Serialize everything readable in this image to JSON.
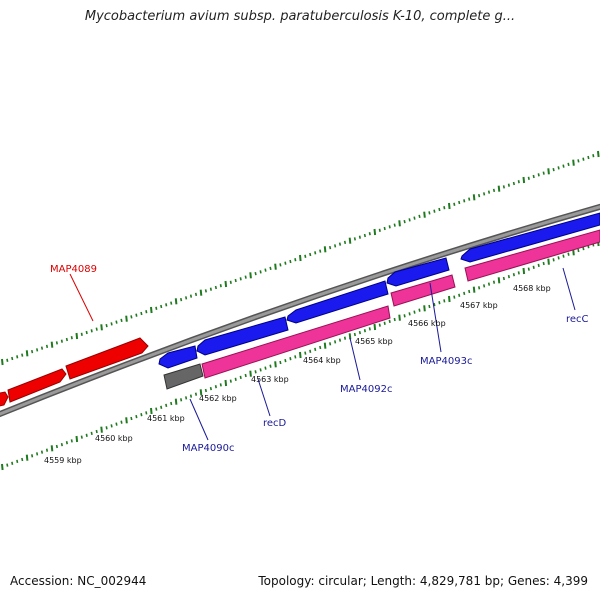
{
  "title": "Mycobacterium avium subsp. paratuberculosis K-10, complete g...",
  "footer": {
    "accession": "Accession: NC_002944",
    "summary": "Topology: circular; Length: 4,829,781 bp; Genes: 4,399"
  },
  "colors": {
    "backbone": "#808080",
    "ticks": "#1f7a1f",
    "forward_gene": "#ee0000",
    "cds_blue": "#1a1aee",
    "rna_pink": "#ee3399",
    "gray_feature": "#666666",
    "label_red": "#dd0000",
    "label_blue": "#1a1a99"
  },
  "tick_labels": [
    "4559 kbp",
    "4560 kbp",
    "4561 kbp",
    "4562 kbp",
    "4563 kbp",
    "4564 kbp",
    "4565 kbp",
    "4566 kbp",
    "4567 kbp",
    "4568 kbp"
  ],
  "gene_labels": [
    {
      "text": "MAP4089",
      "color": "red"
    },
    {
      "text": "MAP4090c",
      "color": "blue"
    },
    {
      "text": "recD",
      "color": "blue"
    },
    {
      "text": "MAP4092c",
      "color": "blue"
    },
    {
      "text": "MAP4093c",
      "color": "blue"
    },
    {
      "text": "recC",
      "color": "blue"
    }
  ]
}
